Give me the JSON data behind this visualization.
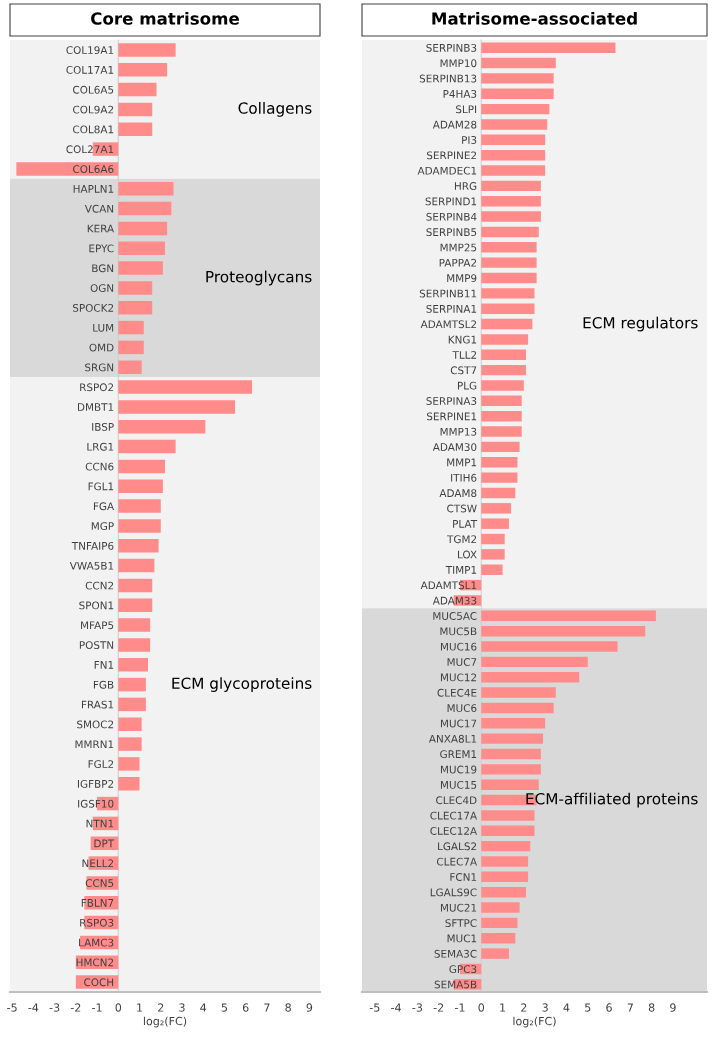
{
  "chart_data": [
    {
      "type": "bar",
      "orientation": "horizontal",
      "title": "Core matrisome",
      "xlabel": "log₂(FC)",
      "color": "#ff8b8b",
      "xlim": [
        -5.1,
        9.5
      ],
      "xticks": [
        -5,
        -4,
        -3,
        -2,
        -1,
        0,
        1,
        2,
        3,
        4,
        5,
        6,
        7,
        8,
        9
      ],
      "categories": [
        "COL19A1",
        "COL17A1",
        "COL6A5",
        "COL9A2",
        "COL8A1",
        "COL27A1",
        "COL6A6",
        "HAPLN1",
        "VCAN",
        "KERA",
        "EPYC",
        "BGN",
        "OGN",
        "SPOCK2",
        "LUM",
        "OMD",
        "SRGN",
        "RSPO2",
        "DMBT1",
        "IBSP",
        "LRG1",
        "CCN6",
        "FGL1",
        "FGA",
        "MGP",
        "TNFAIP6",
        "VWA5B1",
        "CCN2",
        "SPON1",
        "MFAP5",
        "POSTN",
        "FN1",
        "FGB",
        "FRAS1",
        "SMOC2",
        "MMRN1",
        "FGL2",
        "IGFBP2",
        "IGSF10",
        "NTN1",
        "DPT",
        "NELL2",
        "CCN5",
        "FBLN7",
        "RSPO3",
        "LAMC3",
        "HMCN2",
        "COCH"
      ],
      "values": [
        2.7,
        2.3,
        1.8,
        1.6,
        1.6,
        -1.2,
        -4.8,
        2.6,
        2.5,
        2.3,
        2.2,
        2.1,
        1.6,
        1.6,
        1.2,
        1.2,
        1.1,
        6.3,
        5.5,
        4.1,
        2.7,
        2.2,
        2.1,
        2.0,
        2.0,
        1.9,
        1.7,
        1.6,
        1.6,
        1.5,
        1.5,
        1.4,
        1.3,
        1.3,
        1.1,
        1.1,
        1.0,
        1.0,
        -1.0,
        -1.2,
        -1.3,
        -1.4,
        -1.5,
        -1.6,
        -1.6,
        -1.8,
        -2.0,
        -2.0
      ],
      "bands": [
        {
          "axis": "y",
          "from": "COL19A1",
          "to": "COL6A6",
          "label": "Collagens",
          "color": "#f2f2f2"
        },
        {
          "axis": "y",
          "from": "HAPLN1",
          "to": "SRGN",
          "label": "Proteoglycans",
          "color": "#d9d9d9"
        },
        {
          "axis": "y",
          "from": "RSPO2",
          "to": "COCH",
          "label": "ECM glycoproteins",
          "color": "#f2f2f2"
        }
      ]
    },
    {
      "type": "bar",
      "orientation": "horizontal",
      "title": "Matrisome-associated",
      "xlabel": "log₂(FC)",
      "color": "#ff8b8b",
      "xlim": [
        -5.6,
        10.6
      ],
      "xticks": [
        -5,
        -4,
        -3,
        -2,
        -1,
        0,
        1,
        2,
        3,
        4,
        5,
        6,
        7,
        8,
        9
      ],
      "categories": [
        "SERPINB3",
        "MMP10",
        "SERPINB13",
        "P4HA3",
        "SLPI",
        "ADAM28",
        "PI3",
        "SERPINE2",
        "ADAMDEC1",
        "HRG",
        "SERPIND1",
        "SERPINB4",
        "SERPINB5",
        "MMP25",
        "PAPPA2",
        "MMP9",
        "SERPINB11",
        "SERPINA1",
        "ADAMTSL2",
        "KNG1",
        "TLL2",
        "CST7",
        "PLG",
        "SERPINA3",
        "SERPINE1",
        "MMP13",
        "ADAM30",
        "MMP1",
        "ITIH6",
        "ADAM8",
        "CTSW",
        "PLAT",
        "TGM2",
        "LOX",
        "TIMP1",
        "ADAMTSL1",
        "ADAM33",
        "MUC5AC",
        "MUC5B",
        "MUC16",
        "MUC7",
        "MUC12",
        "CLEC4E",
        "MUC6",
        "MUC17",
        "ANXA8L1",
        "GREM1",
        "MUC19",
        "MUC15",
        "CLEC4D",
        "CLEC17A",
        "CLEC12A",
        "LGALS2",
        "CLEC7A",
        "FCN1",
        "LGALS9C",
        "MUC21",
        "SFTPC",
        "MUC1",
        "SEMA3C",
        "GPC3",
        "SEMA5B"
      ],
      "values": [
        6.3,
        3.5,
        3.4,
        3.4,
        3.2,
        3.1,
        3.0,
        3.0,
        3.0,
        2.8,
        2.8,
        2.8,
        2.7,
        2.6,
        2.6,
        2.6,
        2.5,
        2.5,
        2.4,
        2.2,
        2.1,
        2.1,
        2.0,
        1.9,
        1.9,
        1.9,
        1.8,
        1.7,
        1.7,
        1.6,
        1.4,
        1.3,
        1.1,
        1.1,
        1.0,
        -1.0,
        -1.3,
        8.2,
        7.7,
        6.4,
        5.0,
        4.6,
        3.5,
        3.4,
        3.0,
        2.9,
        2.8,
        2.8,
        2.7,
        2.6,
        2.5,
        2.5,
        2.3,
        2.2,
        2.2,
        2.1,
        1.8,
        1.7,
        1.6,
        1.3,
        -1.0,
        -1.3
      ],
      "bands": [
        {
          "axis": "y",
          "from": "SERPINB3",
          "to": "ADAM33",
          "label": "ECM regulators",
          "color": "#f2f2f2"
        },
        {
          "axis": "y",
          "from": "MUC5AC",
          "to": "SEMA5B",
          "label": "ECM-affiliated proteins",
          "color": "#d9d9d9"
        }
      ]
    }
  ]
}
